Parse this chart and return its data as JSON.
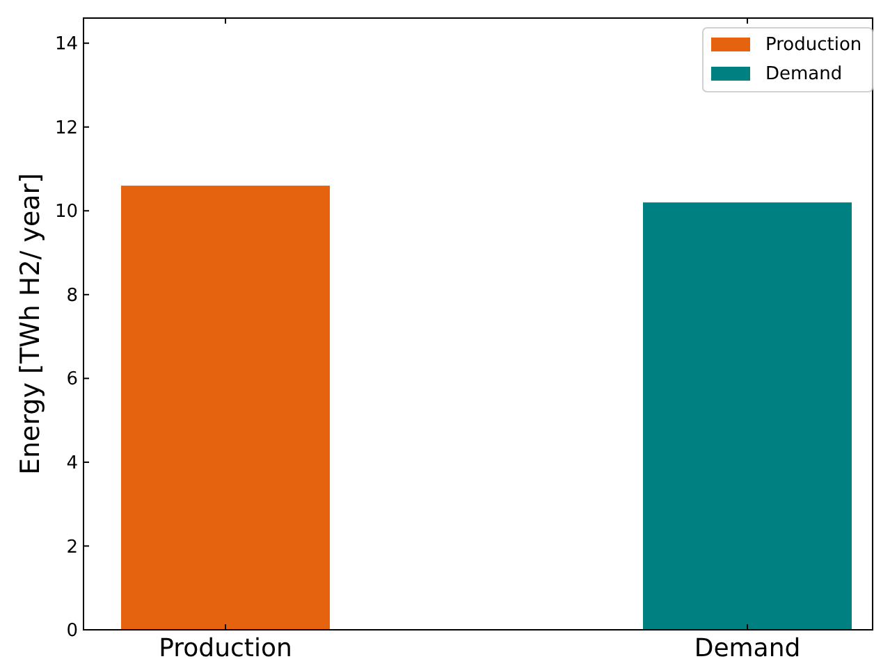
{
  "chart_data": {
    "type": "bar",
    "ylabel": "Energy [TWh H2/ year]",
    "categories": [
      "Production",
      "Demand"
    ],
    "series": [
      {
        "name": "Production",
        "color": "#e5620f",
        "values": [
          10.6,
          null
        ]
      },
      {
        "name": "Demand",
        "color": "#008080",
        "values": [
          null,
          10.2
        ]
      }
    ],
    "ylim": [
      0,
      14.6
    ],
    "yticks": [
      0,
      2,
      4,
      6,
      8,
      10,
      12,
      14
    ],
    "legend": "top right"
  }
}
